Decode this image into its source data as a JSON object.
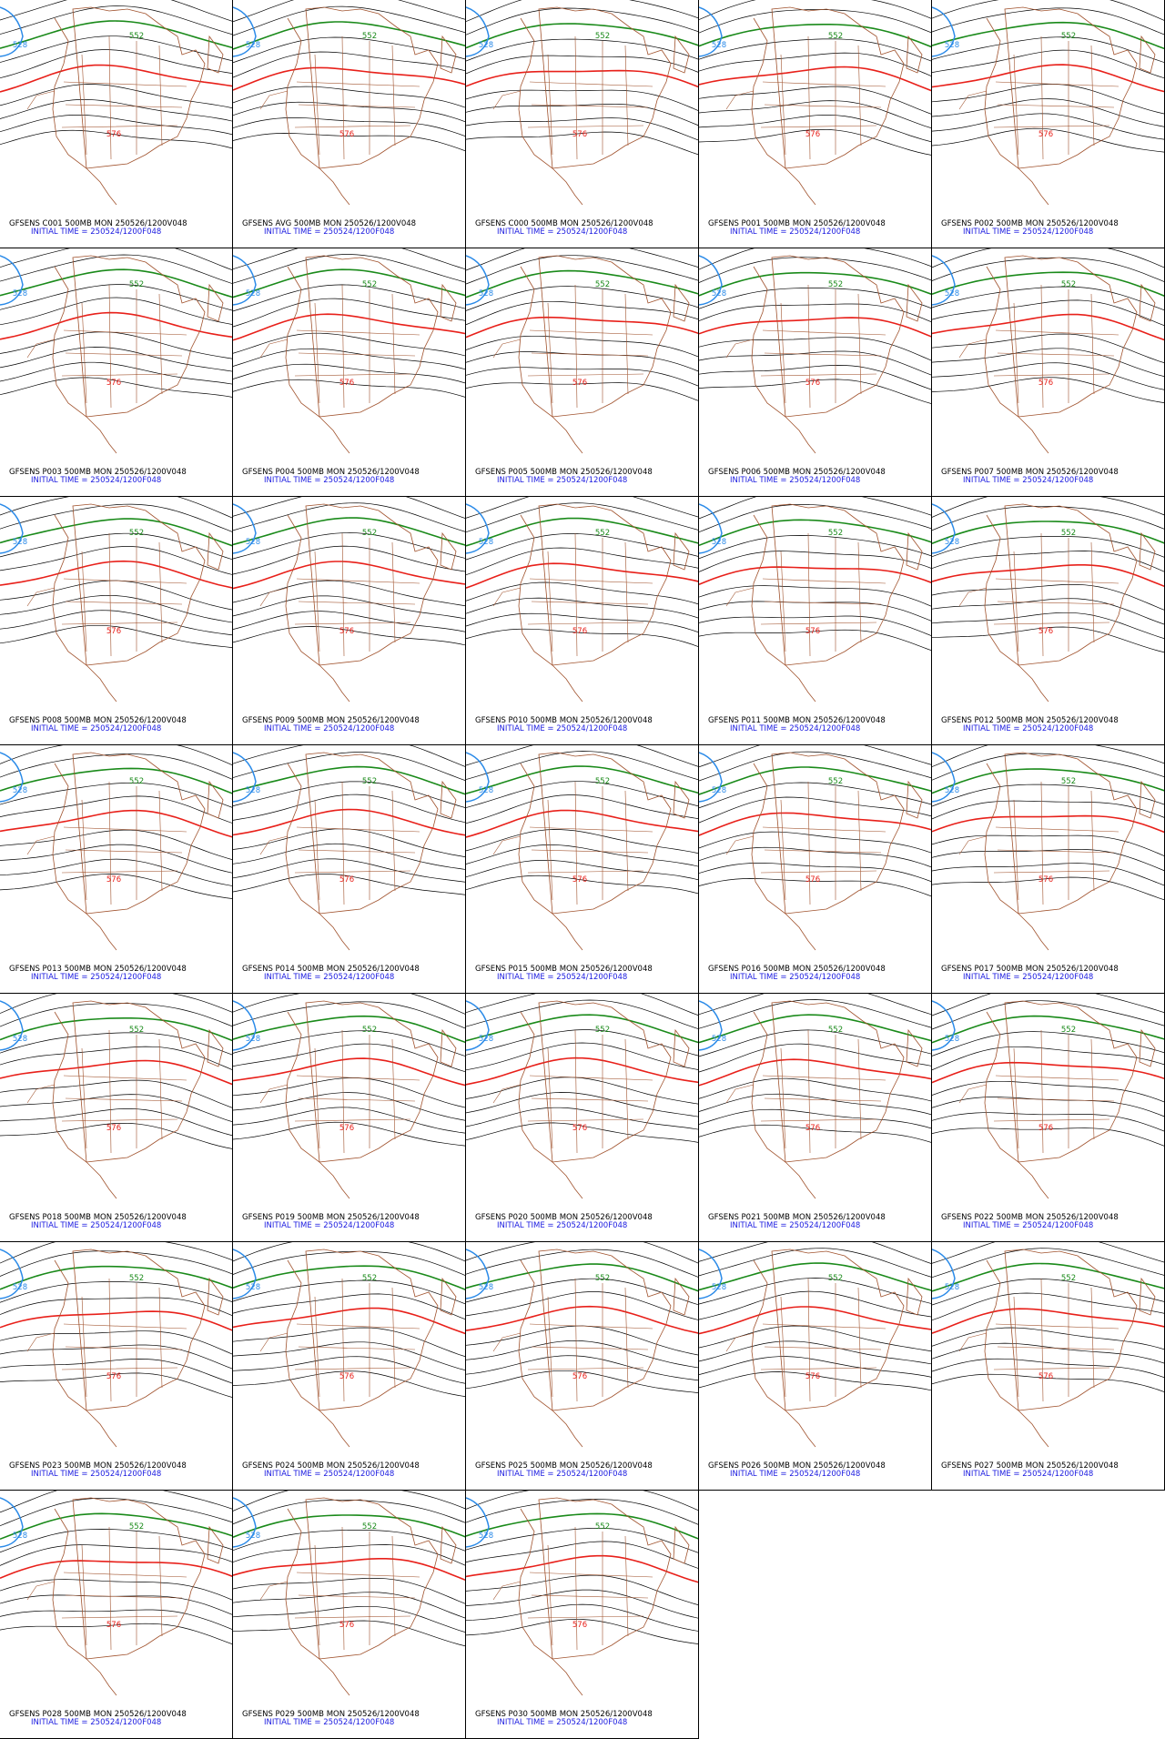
{
  "panels": [
    {
      "title": "GFSENS C001 500MB MON 250526/1200V048",
      "init": "INITIAL TIME = 250524/1200F048",
      "labels": [
        "528",
        "552",
        "576"
      ]
    },
    {
      "title": "GFSENS AVG 500MB MON 250526/1200V048",
      "init": "INITIAL TIME = 250524/1200F048",
      "labels": [
        "528",
        "552",
        "576"
      ]
    },
    {
      "title": "GFSENS C000 500MB MON 250526/1200V048",
      "init": "INITIAL TIME = 250524/1200F048",
      "labels": [
        "528",
        "552",
        "576"
      ]
    },
    {
      "title": "GFSENS P001 500MB MON 250526/1200V048",
      "init": "INITIAL TIME = 250524/1200F048",
      "labels": [
        "528",
        "552",
        "576"
      ]
    },
    {
      "title": "GFSENS P002 500MB MON 250526/1200V048",
      "init": "INITIAL TIME = 250524/1200F048",
      "labels": [
        "528",
        "552",
        "576"
      ]
    },
    {
      "title": "GFSENS P003 500MB MON 250526/1200V048",
      "init": "INITIAL TIME = 250524/1200F048",
      "labels": [
        "528",
        "552",
        "576"
      ]
    },
    {
      "title": "GFSENS P004 500MB MON 250526/1200V048",
      "init": "INITIAL TIME = 250524/1200F048",
      "labels": [
        "528",
        "552",
        "576"
      ]
    },
    {
      "title": "GFSENS P005 500MB MON 250526/1200V048",
      "init": "INITIAL TIME = 250524/1200F048",
      "labels": [
        "528",
        "552",
        "576"
      ]
    },
    {
      "title": "GFSENS P006 500MB MON 250526/1200V048",
      "init": "INITIAL TIME = 250524/1200F048",
      "labels": [
        "528",
        "552",
        "576"
      ]
    },
    {
      "title": "GFSENS P007 500MB MON 250526/1200V048",
      "init": "INITIAL TIME = 250524/1200F048",
      "labels": [
        "528",
        "552",
        "576"
      ]
    },
    {
      "title": "GFSENS P008 500MB MON 250526/1200V048",
      "init": "INITIAL TIME = 250524/1200F048",
      "labels": [
        "528",
        "552",
        "576"
      ]
    },
    {
      "title": "GFSENS P009 500MB MON 250526/1200V048",
      "init": "INITIAL TIME = 250524/1200F048",
      "labels": [
        "528",
        "552",
        "576"
      ]
    },
    {
      "title": "GFSENS P010 500MB MON 250526/1200V048",
      "init": "INITIAL TIME = 250524/1200F048",
      "labels": [
        "528",
        "552",
        "576"
      ]
    },
    {
      "title": "GFSENS P011 500MB MON 250526/1200V048",
      "init": "INITIAL TIME = 250524/1200F048",
      "labels": [
        "528",
        "552",
        "576"
      ]
    },
    {
      "title": "GFSENS P012 500MB MON 250526/1200V048",
      "init": "INITIAL TIME = 250524/1200F048",
      "labels": [
        "528",
        "552",
        "576"
      ]
    },
    {
      "title": "GFSENS P013 500MB MON 250526/1200V048",
      "init": "INITIAL TIME = 250524/1200F048",
      "labels": [
        "528",
        "552",
        "576"
      ]
    },
    {
      "title": "GFSENS P014 500MB MON 250526/1200V048",
      "init": "INITIAL TIME = 250524/1200F048",
      "labels": [
        "528",
        "552",
        "576"
      ]
    },
    {
      "title": "GFSENS P015 500MB MON 250526/1200V048",
      "init": "INITIAL TIME = 250524/1200F048",
      "labels": [
        "528",
        "552",
        "576"
      ]
    },
    {
      "title": "GFSENS P016 500MB MON 250526/1200V048",
      "init": "INITIAL TIME = 250524/1200F048",
      "labels": [
        "528",
        "552",
        "576"
      ]
    },
    {
      "title": "GFSENS P017 500MB MON 250526/1200V048",
      "init": "INITIAL TIME = 250524/1200F048",
      "labels": [
        "528",
        "552",
        "576"
      ]
    },
    {
      "title": "GFSENS P018 500MB MON 250526/1200V048",
      "init": "INITIAL TIME = 250524/1200F048",
      "labels": [
        "528",
        "552",
        "576"
      ]
    },
    {
      "title": "GFSENS P019 500MB MON 250526/1200V048",
      "init": "INITIAL TIME = 250524/1200F048",
      "labels": [
        "528",
        "552",
        "576"
      ]
    },
    {
      "title": "GFSENS P020 500MB MON 250526/1200V048",
      "init": "INITIAL TIME = 250524/1200F048",
      "labels": [
        "528",
        "552",
        "576"
      ]
    },
    {
      "title": "GFSENS P021 500MB MON 250526/1200V048",
      "init": "INITIAL TIME = 250524/1200F048",
      "labels": [
        "528",
        "552",
        "576"
      ]
    },
    {
      "title": "GFSENS P022 500MB MON 250526/1200V048",
      "init": "INITIAL TIME = 250524/1200F048",
      "labels": [
        "528",
        "552",
        "576"
      ]
    },
    {
      "title": "GFSENS P023 500MB MON 250526/1200V048",
      "init": "INITIAL TIME = 250524/1200F048",
      "labels": [
        "528",
        "552",
        "576"
      ]
    },
    {
      "title": "GFSENS P024 500MB MON 250526/1200V048",
      "init": "INITIAL TIME = 250524/1200F048",
      "labels": [
        "528",
        "552",
        "576"
      ]
    },
    {
      "title": "GFSENS P025 500MB MON 250526/1200V048",
      "init": "INITIAL TIME = 250524/1200F048",
      "labels": [
        "528",
        "552",
        "576"
      ]
    },
    {
      "title": "GFSENS P026 500MB MON 250526/1200V048",
      "init": "INITIAL TIME = 250524/1200F048",
      "labels": [
        "528",
        "552",
        "576"
      ]
    },
    {
      "title": "GFSENS P027 500MB MON 250526/1200V048",
      "init": "INITIAL TIME = 250524/1200F048",
      "labels": [
        "528",
        "552",
        "576"
      ]
    },
    {
      "title": "GFSENS P028 500MB MON 250526/1200V048",
      "init": "INITIAL TIME = 250524/1200F048",
      "labels": [
        "528",
        "552",
        "576"
      ]
    },
    {
      "title": "GFSENS P029 500MB MON 250526/1200V048",
      "init": "INITIAL TIME = 250524/1200F048",
      "labels": [
        "528",
        "552",
        "576"
      ]
    },
    {
      "title": "GFSENS P030 500MB MON 250526/1200V048",
      "init": "INITIAL TIME = 250524/1200F048",
      "labels": [
        "528",
        "552",
        "576"
      ]
    }
  ]
}
